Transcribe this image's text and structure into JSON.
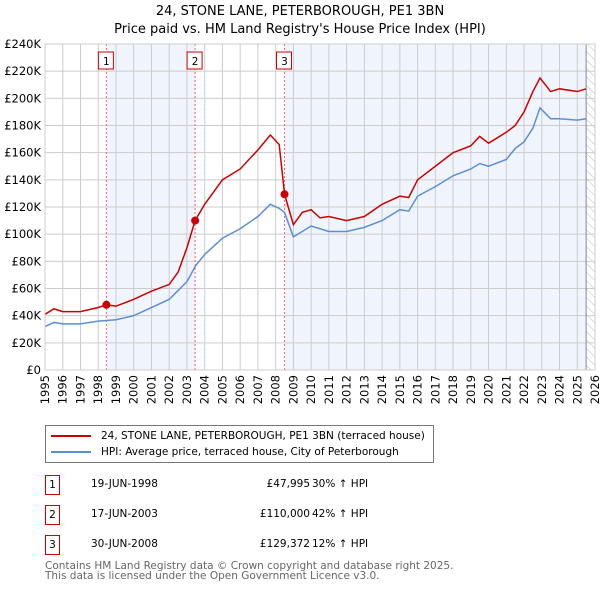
{
  "chart_data": {
    "type": "line",
    "title": "24, STONE LANE, PETERBOROUGH, PE1 3BN",
    "subtitle": "Price paid vs. HM Land Registry's House Price Index (HPI)",
    "xlim": [
      1995,
      2026
    ],
    "ylim": [
      0,
      240000
    ],
    "y_ticks": [
      "£0",
      "£20K",
      "£40K",
      "£60K",
      "£80K",
      "£100K",
      "£120K",
      "£140K",
      "£160K",
      "£180K",
      "£200K",
      "£220K",
      "£240K"
    ],
    "x_ticks": [
      "1995",
      "1996",
      "1997",
      "1998",
      "1999",
      "2000",
      "2001",
      "2002",
      "2003",
      "2004",
      "2005",
      "2006",
      "2007",
      "2008",
      "2009",
      "2010",
      "2011",
      "2012",
      "2013",
      "2014",
      "2015",
      "2016",
      "2017",
      "2018",
      "2019",
      "2020",
      "2021",
      "2022",
      "2023",
      "2024",
      "2025",
      "2026"
    ],
    "grid": true,
    "series": [
      {
        "name": "24, STONE LANE, PETERBOROUGH, PE1 3BN (terraced house)",
        "color": "#cc0000",
        "x": [
          1995,
          1995.5,
          1996,
          1997,
          1998,
          1998.46,
          1999,
          2000,
          2001,
          2002,
          2002.5,
          2003,
          2003.46,
          2004,
          2005,
          2006,
          2007,
          2007.7,
          2008.2,
          2008.5,
          2009,
          2009.5,
          2010,
          2010.5,
          2011,
          2012,
          2013,
          2014,
          2015,
          2015.5,
          2016,
          2017,
          2018,
          2019,
          2019.5,
          2020,
          2021,
          2021.5,
          2022,
          2022.5,
          2022.9,
          2023.5,
          2024,
          2025,
          2025.5
        ],
        "y": [
          41000,
          45000,
          43000,
          43000,
          46000,
          47995,
          47000,
          52000,
          58000,
          63000,
          72000,
          90000,
          110000,
          122000,
          140000,
          148000,
          162000,
          173000,
          166000,
          129372,
          107000,
          116000,
          118000,
          112000,
          113000,
          110000,
          113000,
          122000,
          128000,
          127000,
          140000,
          150000,
          160000,
          165000,
          172000,
          167000,
          175000,
          180000,
          190000,
          205000,
          215000,
          205000,
          207000,
          205000,
          207000
        ]
      },
      {
        "name": "HPI: Average price, terraced house, City of Peterborough",
        "color": "#5b8fd4",
        "x": [
          1995,
          1995.5,
          1996,
          1997,
          1998,
          1999,
          2000,
          2001,
          2002,
          2003,
          2003.5,
          2004,
          2005,
          2006,
          2007,
          2007.7,
          2008.2,
          2008.5,
          2009,
          2010,
          2010.5,
          2011,
          2012,
          2013,
          2014,
          2015,
          2015.5,
          2016,
          2017,
          2018,
          2019,
          2019.5,
          2020,
          2021,
          2021.5,
          2022,
          2022.5,
          2022.9,
          2023.5,
          2024,
          2025,
          2025.5
        ],
        "y": [
          32000,
          35000,
          34000,
          34000,
          36000,
          37000,
          40000,
          46000,
          52000,
          65000,
          77000,
          85000,
          97000,
          104000,
          113000,
          122000,
          119000,
          116000,
          98000,
          106000,
          104000,
          102000,
          102000,
          105000,
          110000,
          118000,
          117000,
          128000,
          135000,
          143000,
          148000,
          152000,
          150000,
          155000,
          163000,
          168000,
          178000,
          193000,
          185000,
          185000,
          184000,
          185000
        ]
      }
    ],
    "sales": [
      {
        "label": "1",
        "x": 1998.46,
        "price": 47995,
        "date": "19-JUN-1998",
        "price_text": "£47,995",
        "hpi": "30% ↑ HPI"
      },
      {
        "label": "2",
        "x": 2003.46,
        "price": 110000,
        "date": "17-JUN-2003",
        "price_text": "£110,000",
        "hpi": "42% ↑ HPI"
      },
      {
        "label": "3",
        "x": 2008.5,
        "price": 129372,
        "date": "30-JUN-2008",
        "price_text": "£129,372",
        "hpi": "12% ↑ HPI"
      }
    ],
    "forecast_from": 2025.5
  },
  "footer": [
    "Contains HM Land Registry data © Crown copyright and database right 2025.",
    "This data is licensed under the Open Government Licence v3.0."
  ]
}
